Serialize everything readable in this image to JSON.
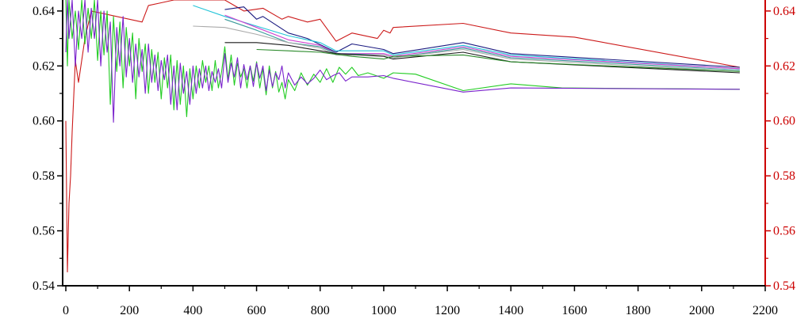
{
  "chart_data": {
    "type": "line",
    "xlim": [
      -10,
      2200
    ],
    "ylim": [
      0.54,
      0.644
    ],
    "grid": false,
    "x_ticks": [
      {
        "v": 0,
        "label": "0"
      },
      {
        "v": 200,
        "label": "200"
      },
      {
        "v": 400,
        "label": "400"
      },
      {
        "v": 600,
        "label": "600"
      },
      {
        "v": 800,
        "label": "800"
      },
      {
        "v": 1000,
        "label": "1000"
      },
      {
        "v": 1200,
        "label": "1200"
      },
      {
        "v": 1400,
        "label": "1400"
      },
      {
        "v": 1600,
        "label": "1600"
      },
      {
        "v": 1800,
        "label": "1800"
      },
      {
        "v": 2000,
        "label": "2000"
      },
      {
        "v": 2200,
        "label": "2200"
      }
    ],
    "y_ticks_left": [
      {
        "v": 0.54,
        "label": "0.54"
      },
      {
        "v": 0.56,
        "label": "0.56"
      },
      {
        "v": 0.58,
        "label": "0.58"
      },
      {
        "v": 0.6,
        "label": "0.60"
      },
      {
        "v": 0.62,
        "label": "0.62"
      },
      {
        "v": 0.64,
        "label": "0.64"
      }
    ],
    "y_ticks_right": [
      {
        "v": 0.54,
        "label": "0.54"
      },
      {
        "v": 0.56,
        "label": "0.56"
      },
      {
        "v": 0.58,
        "label": "0.58"
      },
      {
        "v": 0.6,
        "label": "0.60"
      },
      {
        "v": 0.62,
        "label": "0.62"
      },
      {
        "v": 0.64,
        "label": "0.64"
      }
    ],
    "left_axis_color": "#000000",
    "right_axis_color": "#cc0000",
    "series": [
      {
        "color": "#cc1a1a",
        "points": [
          [
            0,
            0.6
          ],
          [
            5,
            0.545
          ],
          [
            10,
            0.57
          ],
          [
            15,
            0.58
          ],
          [
            20,
            0.596
          ],
          [
            30,
            0.622
          ],
          [
            40,
            0.614
          ],
          [
            60,
            0.63
          ],
          [
            80,
            0.64
          ],
          [
            240,
            0.636
          ],
          [
            260,
            0.642
          ],
          [
            300,
            0.643
          ],
          [
            340,
            0.644
          ],
          [
            500,
            0.644
          ],
          [
            560,
            0.64
          ],
          [
            620,
            0.641
          ],
          [
            680,
            0.637
          ],
          [
            700,
            0.638
          ],
          [
            760,
            0.636
          ],
          [
            800,
            0.637
          ],
          [
            850,
            0.629
          ],
          [
            900,
            0.632
          ],
          [
            980,
            0.63
          ],
          [
            1000,
            0.633
          ],
          [
            1020,
            0.632
          ],
          [
            1030,
            0.634
          ],
          [
            1250,
            0.6355
          ],
          [
            1400,
            0.632
          ],
          [
            1600,
            0.6305
          ],
          [
            2120,
            0.6195
          ]
        ]
      },
      {
        "color": "#1a1a80",
        "points": [
          [
            500,
            0.6405
          ],
          [
            560,
            0.6415
          ],
          [
            600,
            0.637
          ],
          [
            620,
            0.638
          ],
          [
            700,
            0.632
          ],
          [
            760,
            0.63
          ],
          [
            850,
            0.625
          ],
          [
            900,
            0.628
          ],
          [
            1000,
            0.626
          ],
          [
            1030,
            0.6245
          ],
          [
            1250,
            0.6285
          ],
          [
            1400,
            0.6245
          ],
          [
            2120,
            0.6195
          ]
        ]
      },
      {
        "color": "#22c4d8",
        "points": [
          [
            400,
            0.642
          ],
          [
            500,
            0.638
          ],
          [
            600,
            0.6345
          ],
          [
            700,
            0.631
          ],
          [
            800,
            0.6285
          ],
          [
            850,
            0.6255
          ],
          [
            1000,
            0.6255
          ],
          [
            1030,
            0.624
          ],
          [
            1250,
            0.6275
          ],
          [
            1400,
            0.624
          ],
          [
            2120,
            0.619
          ]
        ]
      },
      {
        "color": "#d040d0",
        "points": [
          [
            500,
            0.6385
          ],
          [
            600,
            0.634
          ],
          [
            700,
            0.6295
          ],
          [
            800,
            0.6275
          ],
          [
            850,
            0.6245
          ],
          [
            1000,
            0.6245
          ],
          [
            1030,
            0.6235
          ],
          [
            1250,
            0.627
          ],
          [
            1400,
            0.6235
          ],
          [
            2120,
            0.619
          ]
        ]
      },
      {
        "color": "#3a9a9a",
        "points": [
          [
            500,
            0.637
          ],
          [
            600,
            0.633
          ],
          [
            700,
            0.6285
          ],
          [
            800,
            0.627
          ],
          [
            850,
            0.6245
          ],
          [
            1000,
            0.624
          ],
          [
            1030,
            0.623
          ],
          [
            1250,
            0.6265
          ],
          [
            1400,
            0.623
          ],
          [
            2120,
            0.6185
          ]
        ]
      },
      {
        "color": "#aaaaaa",
        "points": [
          [
            400,
            0.6345
          ],
          [
            500,
            0.634
          ],
          [
            600,
            0.6315
          ],
          [
            700,
            0.6285
          ],
          [
            800,
            0.6265
          ],
          [
            850,
            0.624
          ],
          [
            1000,
            0.624
          ],
          [
            1030,
            0.623
          ],
          [
            1250,
            0.626
          ],
          [
            1400,
            0.6225
          ],
          [
            2120,
            0.618
          ]
        ]
      },
      {
        "color": "#1a1a1a",
        "points": [
          [
            500,
            0.6285
          ],
          [
            600,
            0.6285
          ],
          [
            700,
            0.6275
          ],
          [
            800,
            0.6255
          ],
          [
            850,
            0.6245
          ],
          [
            1000,
            0.6235
          ],
          [
            1030,
            0.6225
          ],
          [
            1250,
            0.625
          ],
          [
            1400,
            0.6215
          ],
          [
            2120,
            0.6175
          ]
        ]
      },
      {
        "color": "#2a8a2a",
        "points": [
          [
            600,
            0.626
          ],
          [
            700,
            0.6255
          ],
          [
            800,
            0.625
          ],
          [
            900,
            0.6235
          ],
          [
            1000,
            0.6225
          ],
          [
            1030,
            0.6235
          ],
          [
            1250,
            0.624
          ],
          [
            1400,
            0.6215
          ],
          [
            2120,
            0.618
          ]
        ]
      },
      {
        "color": "#22cc22",
        "points": [
          [
            0,
            0.644
          ],
          [
            5,
            0.62
          ],
          [
            10,
            0.644
          ],
          [
            20,
            0.63
          ],
          [
            30,
            0.64
          ],
          [
            40,
            0.626
          ],
          [
            50,
            0.644
          ],
          [
            60,
            0.628
          ],
          [
            70,
            0.641
          ],
          [
            80,
            0.63
          ],
          [
            90,
            0.644
          ],
          [
            100,
            0.622
          ],
          [
            110,
            0.64
          ],
          [
            120,
            0.624
          ],
          [
            130,
            0.64
          ],
          [
            140,
            0.606
          ],
          [
            150,
            0.638
          ],
          [
            160,
            0.618
          ],
          [
            170,
            0.636
          ],
          [
            180,
            0.612
          ],
          [
            190,
            0.634
          ],
          [
            200,
            0.62
          ],
          [
            210,
            0.632
          ],
          [
            220,
            0.608
          ],
          [
            230,
            0.63
          ],
          [
            240,
            0.618
          ],
          [
            250,
            0.628
          ],
          [
            260,
            0.61
          ],
          [
            270,
            0.626
          ],
          [
            280,
            0.614
          ],
          [
            290,
            0.625
          ],
          [
            300,
            0.608
          ],
          [
            310,
            0.623
          ],
          [
            320,
            0.612
          ],
          [
            330,
            0.624
          ],
          [
            340,
            0.604
          ],
          [
            350,
            0.622
          ],
          [
            360,
            0.606
          ],
          [
            370,
            0.62
          ],
          [
            380,
            0.6015
          ],
          [
            390,
            0.619
          ],
          [
            400,
            0.608
          ],
          [
            410,
            0.62
          ],
          [
            420,
            0.612
          ],
          [
            430,
            0.622
          ],
          [
            440,
            0.614
          ],
          [
            450,
            0.62
          ],
          [
            460,
            0.611
          ],
          [
            470,
            0.622
          ],
          [
            480,
            0.612
          ],
          [
            490,
            0.618
          ],
          [
            500,
            0.627
          ],
          [
            510,
            0.615
          ],
          [
            520,
            0.624
          ],
          [
            530,
            0.613
          ],
          [
            540,
            0.621
          ],
          [
            550,
            0.616
          ],
          [
            560,
            0.619
          ],
          [
            570,
            0.612
          ],
          [
            580,
            0.62
          ],
          [
            590,
            0.6145
          ],
          [
            600,
            0.6215
          ],
          [
            610,
            0.612
          ],
          [
            620,
            0.619
          ],
          [
            630,
            0.6095
          ],
          [
            640,
            0.62
          ],
          [
            650,
            0.612
          ],
          [
            660,
            0.618
          ],
          [
            670,
            0.6105
          ],
          [
            680,
            0.614
          ],
          [
            690,
            0.608
          ],
          [
            700,
            0.615
          ],
          [
            720,
            0.611
          ],
          [
            740,
            0.6175
          ],
          [
            760,
            0.613
          ],
          [
            780,
            0.617
          ],
          [
            800,
            0.614
          ],
          [
            820,
            0.619
          ],
          [
            840,
            0.614
          ],
          [
            860,
            0.6195
          ],
          [
            880,
            0.617
          ],
          [
            900,
            0.6195
          ],
          [
            920,
            0.6165
          ],
          [
            950,
            0.6175
          ],
          [
            1000,
            0.6155
          ],
          [
            1030,
            0.6175
          ],
          [
            1100,
            0.617
          ],
          [
            1250,
            0.611
          ],
          [
            1400,
            0.6135
          ],
          [
            1560,
            0.612
          ],
          [
            2120,
            0.6115
          ]
        ]
      },
      {
        "color": "#7a22cc",
        "points": [
          [
            0,
            0.625
          ],
          [
            5,
            0.644
          ],
          [
            10,
            0.63
          ],
          [
            20,
            0.644
          ],
          [
            30,
            0.62
          ],
          [
            40,
            0.64
          ],
          [
            50,
            0.63
          ],
          [
            60,
            0.644
          ],
          [
            70,
            0.625
          ],
          [
            80,
            0.641
          ],
          [
            90,
            0.63
          ],
          [
            100,
            0.644
          ],
          [
            110,
            0.62
          ],
          [
            120,
            0.64
          ],
          [
            130,
            0.625
          ],
          [
            140,
            0.636
          ],
          [
            150,
            0.5995
          ],
          [
            160,
            0.634
          ],
          [
            170,
            0.62
          ],
          [
            180,
            0.638
          ],
          [
            190,
            0.616
          ],
          [
            200,
            0.63
          ],
          [
            210,
            0.614
          ],
          [
            220,
            0.628
          ],
          [
            230,
            0.616
          ],
          [
            240,
            0.626
          ],
          [
            250,
            0.61
          ],
          [
            260,
            0.628
          ],
          [
            270,
            0.614
          ],
          [
            280,
            0.624
          ],
          [
            290,
            0.611
          ],
          [
            300,
            0.622
          ],
          [
            310,
            0.615
          ],
          [
            320,
            0.624
          ],
          [
            330,
            0.606
          ],
          [
            340,
            0.62
          ],
          [
            350,
            0.604
          ],
          [
            360,
            0.621
          ],
          [
            370,
            0.61
          ],
          [
            380,
            0.618
          ],
          [
            390,
            0.606
          ],
          [
            400,
            0.62
          ],
          [
            410,
            0.61
          ],
          [
            420,
            0.619
          ],
          [
            430,
            0.612
          ],
          [
            440,
            0.62
          ],
          [
            450,
            0.611
          ],
          [
            460,
            0.618
          ],
          [
            470,
            0.614
          ],
          [
            480,
            0.619
          ],
          [
            490,
            0.612
          ],
          [
            500,
            0.6245
          ],
          [
            510,
            0.614
          ],
          [
            520,
            0.621
          ],
          [
            530,
            0.616
          ],
          [
            540,
            0.623
          ],
          [
            550,
            0.612
          ],
          [
            560,
            0.6205
          ],
          [
            570,
            0.615
          ],
          [
            580,
            0.62
          ],
          [
            590,
            0.6125
          ],
          [
            600,
            0.621
          ],
          [
            610,
            0.6155
          ],
          [
            620,
            0.62
          ],
          [
            630,
            0.611
          ],
          [
            640,
            0.6185
          ],
          [
            650,
            0.6125
          ],
          [
            660,
            0.6175
          ],
          [
            670,
            0.615
          ],
          [
            680,
            0.62
          ],
          [
            690,
            0.612
          ],
          [
            700,
            0.6175
          ],
          [
            720,
            0.613
          ],
          [
            740,
            0.616
          ],
          [
            760,
            0.6135
          ],
          [
            780,
            0.6155
          ],
          [
            800,
            0.6185
          ],
          [
            820,
            0.615
          ],
          [
            840,
            0.6165
          ],
          [
            860,
            0.6175
          ],
          [
            880,
            0.6145
          ],
          [
            900,
            0.616
          ],
          [
            950,
            0.616
          ],
          [
            1000,
            0.6165
          ],
          [
            1030,
            0.6155
          ],
          [
            1250,
            0.6105
          ],
          [
            1400,
            0.612
          ],
          [
            2120,
            0.6115
          ]
        ]
      }
    ]
  }
}
